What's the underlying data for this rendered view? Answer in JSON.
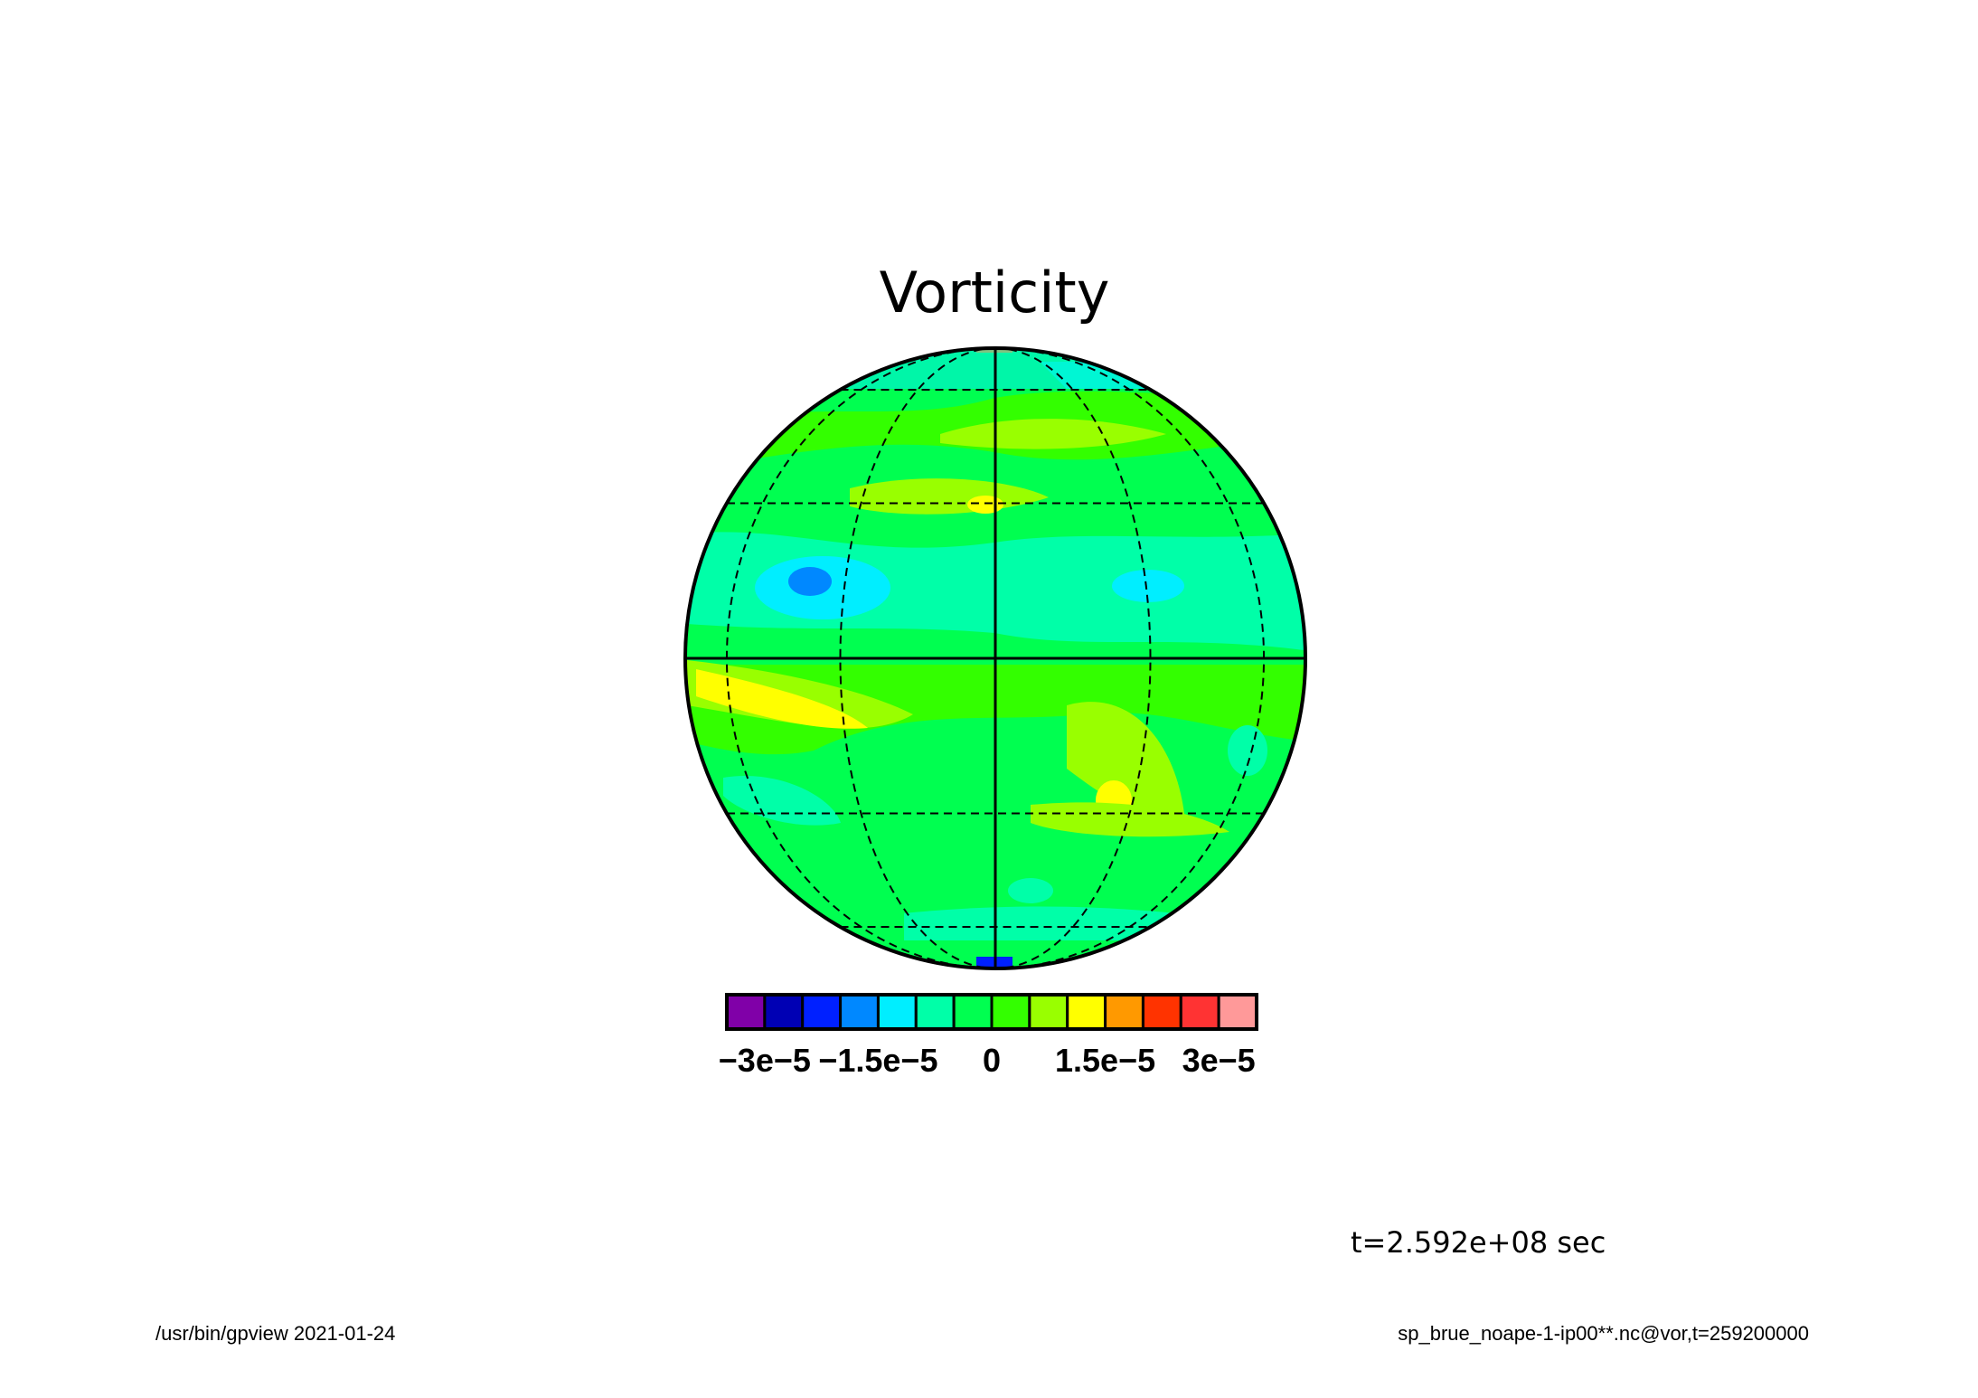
{
  "chart_data": {
    "type": "heatmap",
    "title": "Vorticity",
    "projection": "orthographic",
    "grid": true,
    "graticule_lon_deg": [
      -60,
      -30,
      0,
      30,
      60
    ],
    "graticule_lat_deg": [
      -60,
      -30,
      0,
      30,
      60
    ],
    "colorbar": {
      "placement": "bottom",
      "levels": [
        -3.5e-05,
        -3e-05,
        -2.5e-05,
        -2e-05,
        -1.5e-05,
        -1e-05,
        -5e-06,
        0,
        5e-06,
        1e-05,
        1.5e-05,
        2e-05,
        2.5e-05,
        3e-05,
        3.5e-05
      ],
      "colors": [
        "#8000a8",
        "#0000b4",
        "#0020ff",
        "#0088ff",
        "#00eeff",
        "#00ffa8",
        "#00ff50",
        "#33ff00",
        "#99ff00",
        "#ffff00",
        "#ff9900",
        "#ff3300",
        "#ff3333",
        "#ff9999"
      ],
      "tick_labels": [
        "−3e−5",
        "−1.5e−5",
        "0",
        "1.5e−5",
        "3e−5"
      ],
      "tick_values": [
        -3e-05,
        -1.5e-05,
        0,
        1.5e-05,
        3e-05
      ]
    }
  },
  "annotations": {
    "time": "t=2.592e+08 sec",
    "program": "/usr/bin/gpview  2021-01-24",
    "source": "sp_brue_noape-1-ip00**.nc@vor,t=259200000"
  }
}
